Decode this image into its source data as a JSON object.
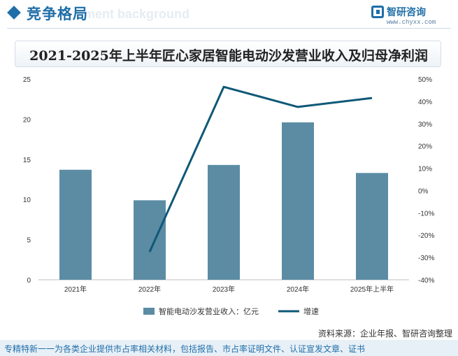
{
  "header": {
    "section_title": "竞争格局",
    "ghost_text": "ment background",
    "brand_name": "智研咨询",
    "brand_url": "www.chyxx.com"
  },
  "chart_data": {
    "type": "bar",
    "title": "2021-2025年上半年匠心家居智能电动沙发营业收入及归母净利润",
    "categories": [
      "2021年",
      "2022年",
      "2023年",
      "2024年",
      "2025年上半年"
    ],
    "series": [
      {
        "name": "智能电动沙发营业收入：亿元",
        "type": "bar",
        "axis": "left",
        "values": [
          13.7,
          9.9,
          14.3,
          19.6,
          13.3
        ],
        "color": "#5b8ca4"
      },
      {
        "name": "增速",
        "type": "line",
        "axis": "right",
        "values": [
          null,
          -27.5,
          46.5,
          37.5,
          41.5
        ],
        "color": "#0f5877"
      }
    ],
    "y_left": {
      "min": 0,
      "max": 25,
      "ticks": [
        "0",
        "5",
        "10",
        "15",
        "20",
        "25"
      ]
    },
    "y_right": {
      "min": -40,
      "max": 50,
      "ticks": [
        "-40%",
        "-30%",
        "-20%",
        "-10%",
        "0%",
        "10%",
        "20%",
        "30%",
        "40%",
        "50%"
      ]
    },
    "legend_position": "bottom-center",
    "grid": false
  },
  "footer": {
    "source": "资料来源：企业年报、智研咨询整理",
    "text": "专精特新一一为各类企业提供市占率相关材料，包括报告、市占率证明文件、认证宣发文章、证书"
  }
}
